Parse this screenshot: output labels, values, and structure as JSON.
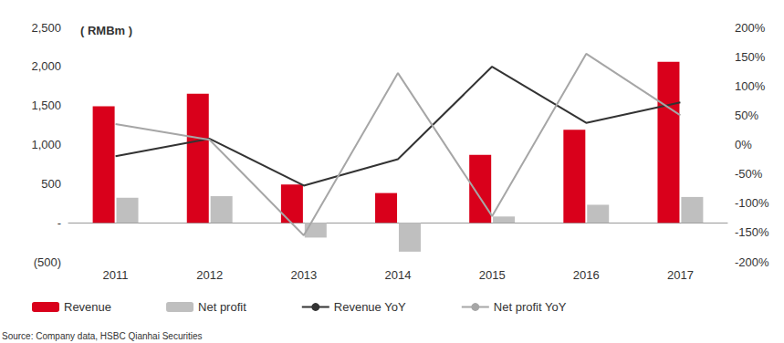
{
  "chart_data": {
    "type": "bar",
    "y_label": "( RMBm )",
    "source": "Source: Company data, HSBC Qianhai Securities",
    "categories": [
      "2011",
      "2012",
      "2013",
      "2014",
      "2015",
      "2016",
      "2017"
    ],
    "series": [
      {
        "name": "Revenue",
        "type": "bar",
        "color": "#d9001b",
        "values": [
          1490,
          1650,
          490,
          380,
          870,
          1190,
          2060
        ]
      },
      {
        "name": "Net profit",
        "type": "bar",
        "color": "#bfbfbf",
        "values": [
          320,
          340,
          -190,
          -370,
          80,
          230,
          330
        ]
      },
      {
        "name": "Revenue YoY",
        "type": "line",
        "axis": "y2",
        "color": "#333333",
        "values": [
          -20,
          10,
          -70,
          -25,
          133,
          37,
          72
        ]
      },
      {
        "name": "Net profit YoY",
        "type": "line",
        "axis": "y2",
        "color": "#a6a6a6",
        "values": [
          35,
          8,
          -155,
          122,
          -122,
          155,
          50
        ]
      }
    ],
    "ylim": [
      -500,
      2500
    ],
    "yticks": [
      {
        "value": -500,
        "label": "(500)"
      },
      {
        "value": 0,
        "label": "-"
      },
      500,
      {
        "value": 1000,
        "label": "1,000"
      },
      {
        "value": 1500,
        "label": "1,500"
      },
      {
        "value": 2000,
        "label": "2,000"
      },
      {
        "value": 2500,
        "label": "2,500"
      }
    ],
    "y2lim": [
      -200,
      200
    ],
    "y2ticks": [
      {
        "value": -200,
        "label": "-200%"
      },
      {
        "value": -150,
        "label": "-150%"
      },
      {
        "value": -100,
        "label": "-100%"
      },
      {
        "value": -50,
        "label": "-50%"
      },
      {
        "value": 0,
        "label": "0%"
      },
      {
        "value": 50,
        "label": "50%"
      },
      {
        "value": 100,
        "label": "100%"
      },
      {
        "value": 150,
        "label": "150%"
      },
      {
        "value": 200,
        "label": "200%"
      }
    ],
    "grid": false,
    "legend": "bottom"
  }
}
